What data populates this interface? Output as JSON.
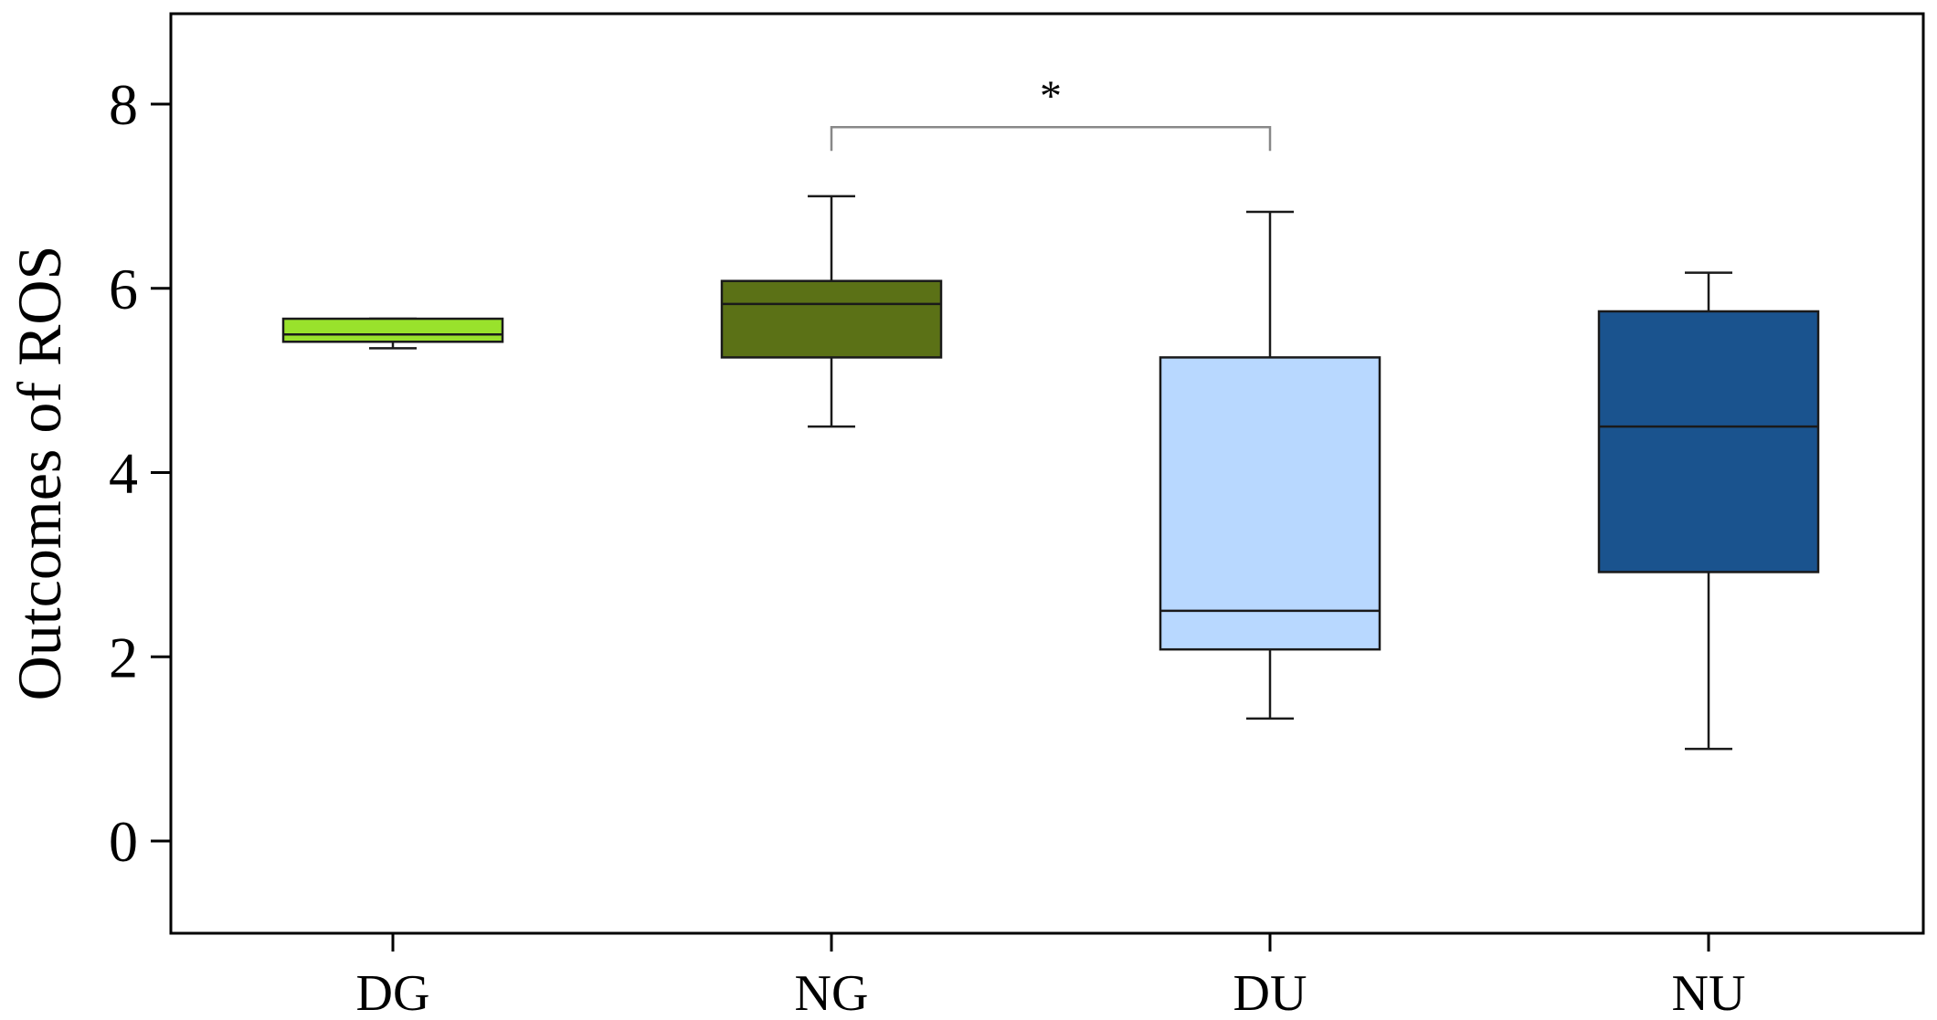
{
  "chart_data": {
    "type": "box",
    "ylabel": "Outcomes of ROS",
    "ylim": [
      -1,
      9
    ],
    "yticks": [
      0,
      2,
      4,
      6,
      8
    ],
    "categories": [
      "DG",
      "NG",
      "DU",
      "NU"
    ],
    "boxes": [
      {
        "category": "DG",
        "whisker_low": 5.35,
        "q1": 5.42,
        "median": 5.5,
        "q3": 5.67,
        "whisker_high": 5.67,
        "color": "#99E22C"
      },
      {
        "category": "NG",
        "whisker_low": 4.5,
        "q1": 5.25,
        "median": 5.83,
        "q3": 6.08,
        "whisker_high": 7.0,
        "color": "#5B7116"
      },
      {
        "category": "DU",
        "whisker_low": 1.33,
        "q1": 2.08,
        "median": 2.5,
        "q3": 5.25,
        "whisker_high": 6.83,
        "color": "#B8D8FF"
      },
      {
        "category": "NU",
        "whisker_low": 1.0,
        "q1": 2.92,
        "median": 4.5,
        "q3": 5.75,
        "whisker_high": 6.17,
        "color": "#1A538E"
      }
    ],
    "significance": [
      {
        "from": "NG",
        "to": "DU",
        "y": 7.75,
        "label": "*"
      }
    ],
    "grid": false,
    "legend": "none"
  }
}
